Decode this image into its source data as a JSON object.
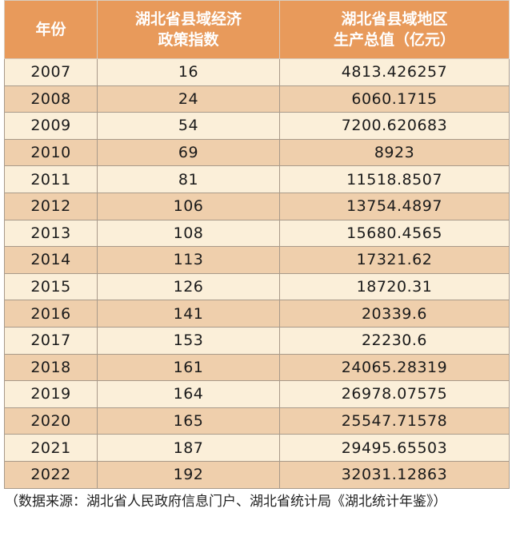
{
  "table": {
    "headers": {
      "year": "年份",
      "policy_line1": "湖北省县域经济",
      "policy_line2": "政策指数",
      "gdp_line1": "湖北省县域地区",
      "gdp_line2": "生产总值（亿元）"
    },
    "rows": [
      {
        "year": "2007",
        "policy": "16",
        "gdp": "4813.426257"
      },
      {
        "year": "2008",
        "policy": "24",
        "gdp": "6060.1715"
      },
      {
        "year": "2009",
        "policy": "54",
        "gdp": "7200.620683"
      },
      {
        "year": "2010",
        "policy": "69",
        "gdp": "8923"
      },
      {
        "year": "2011",
        "policy": "81",
        "gdp": "11518.8507"
      },
      {
        "year": "2012",
        "policy": "106",
        "gdp": "13754.4897"
      },
      {
        "year": "2013",
        "policy": "108",
        "gdp": "15680.4565"
      },
      {
        "year": "2014",
        "policy": "113",
        "gdp": "17321.62"
      },
      {
        "year": "2015",
        "policy": "126",
        "gdp": "18720.31"
      },
      {
        "year": "2016",
        "policy": "141",
        "gdp": "20339.6"
      },
      {
        "year": "2017",
        "policy": "153",
        "gdp": "22230.6"
      },
      {
        "year": "2018",
        "policy": "161",
        "gdp": "24065.28319"
      },
      {
        "year": "2019",
        "policy": "164",
        "gdp": "26978.07575"
      },
      {
        "year": "2020",
        "policy": "165",
        "gdp": "25547.71578"
      },
      {
        "year": "2021",
        "policy": "187",
        "gdp": "29495.65503"
      },
      {
        "year": "2022",
        "policy": "192",
        "gdp": "32031.12863"
      }
    ]
  },
  "source_note": "（数据来源：湖北省人民政府信息门户、湖北省统计局《湖北统计年鉴》）",
  "colors": {
    "header_bg": "#e89a5b",
    "row_light": "#fbefd9",
    "row_dark": "#efcfac"
  }
}
